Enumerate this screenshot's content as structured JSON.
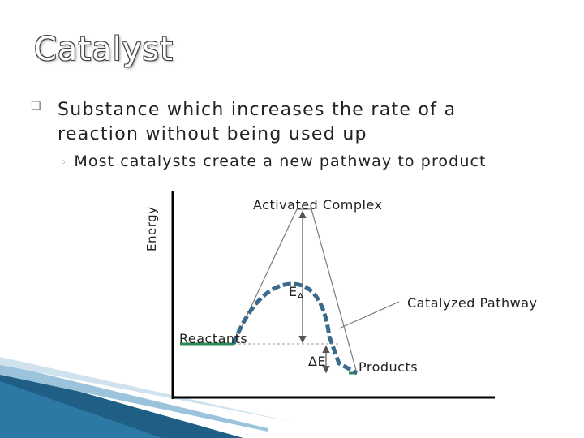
{
  "slide": {
    "title": "Catalyst",
    "bullet_marker": "❏",
    "bullet1_line1": "Substance which increases the rate of a",
    "bullet1_line2": "reaction without being used up",
    "sub_marker": "◦",
    "bullet2": "Most catalysts create a new pathway to product"
  },
  "diagram": {
    "y_axis_label": "Energy",
    "activated_complex": "Activated Complex",
    "ea_label": "E",
    "ea_subscript": "A",
    "catalyzed_pathway": "Catalyzed Pathway",
    "reactants": "Reactants",
    "delta_e": "ΔE",
    "products": "Products",
    "colors": {
      "reactant_line": "#2e8b57",
      "catalyzed_curve": "#3a6b8c",
      "uncatalyzed_curve": "#7a7a7a",
      "axis": "#000000"
    }
  }
}
